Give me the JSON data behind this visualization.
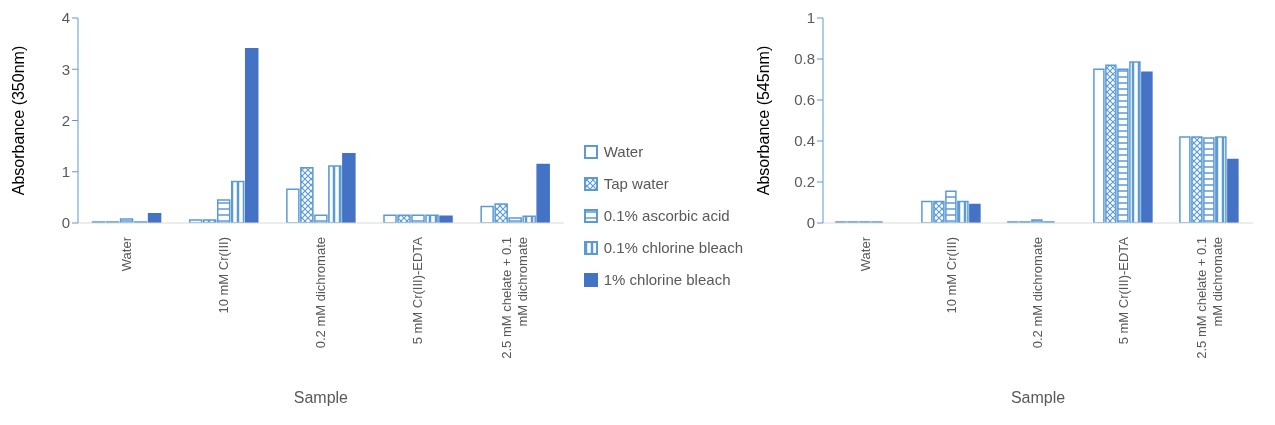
{
  "chart_data": [
    {
      "type": "bar",
      "xlabel": "Sample",
      "ylabel": "Absorbance (350nm)",
      "categories": [
        "Water",
        "10 mM Cr(III)",
        "0.2 mM dichromate",
        "5 mM Cr(III)-EDTA",
        "2.5 mM chelate + 0.1 mM dichromate"
      ],
      "series": [
        {
          "name": "Water",
          "color": "#5b9bd5",
          "values": [
            0.02,
            0.06,
            0.66,
            0.15,
            0.32
          ]
        },
        {
          "name": "Tap water",
          "color": "#5b9bd5",
          "values": [
            0.02,
            0.06,
            1.08,
            0.15,
            0.37
          ]
        },
        {
          "name": "0.1% ascorbic acid",
          "color": "#5b9bd5",
          "values": [
            0.08,
            0.45,
            0.15,
            0.15,
            0.1
          ]
        },
        {
          "name": "0.1% chlorine bleach",
          "color": "#5b9bd5",
          "values": [
            0.02,
            0.81,
            1.11,
            0.15,
            0.13
          ]
        },
        {
          "name": "1% chlorine bleach",
          "color": "#4472c4",
          "values": [
            0.18,
            3.4,
            1.35,
            0.13,
            1.14
          ]
        }
      ],
      "ylim": [
        0,
        4
      ],
      "yticks": [
        0,
        1,
        2,
        3,
        4
      ],
      "grid": false,
      "legend": "right"
    },
    {
      "type": "bar",
      "xlabel": "Sample",
      "ylabel": "Absorbance (545nm)",
      "categories": [
        "Water",
        "10 mM Cr(III)",
        "0.2 mM dichromate",
        "5 mM Cr(III)-EDTA",
        "2.5 mM chelate + 0.1 mM dichromate"
      ],
      "series": [
        {
          "color": "#5b9bd5",
          "values": [
            0.005,
            0.105,
            0.005,
            0.75,
            0.42
          ]
        },
        {
          "color": "#5b9bd5",
          "values": [
            0.005,
            0.105,
            0.005,
            0.77,
            0.42
          ]
        },
        {
          "color": "#5b9bd5",
          "values": [
            0.005,
            0.155,
            0.015,
            0.75,
            0.415
          ]
        },
        {
          "color": "#5b9bd5",
          "values": [
            0.005,
            0.105,
            0.005,
            0.785,
            0.42
          ]
        },
        {
          "color": "#4472c4",
          "values": [
            0,
            0.09,
            0,
            0.735,
            0.31
          ]
        }
      ],
      "ylim": [
        0,
        1
      ],
      "yticks": [
        0,
        0.2,
        0.4,
        0.6,
        0.8,
        1
      ],
      "grid": false
    }
  ]
}
